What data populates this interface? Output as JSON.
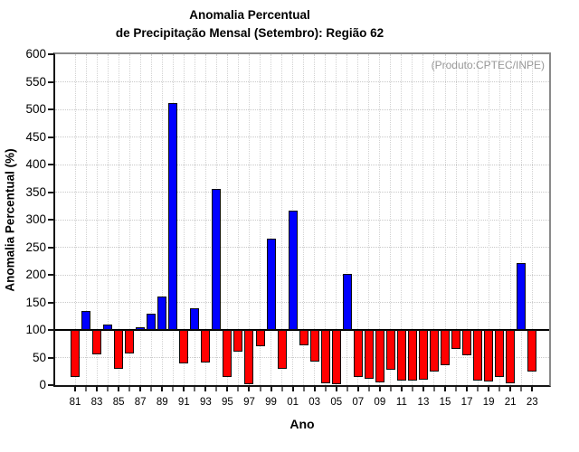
{
  "chart_data": {
    "type": "bar",
    "title_line1": "Anomalia Percentual",
    "title_line2": "de Precipitação Mensal (Setembro): Região 62",
    "title": "Anomalia Percentual de Precipitação Mensal (Setembro): Região 62",
    "annotation": "(Produto:CPTEC/INPE)",
    "xlabel": "Ano",
    "ylabel": "Anomalia Percentual (%)",
    "ylim": [
      0,
      600
    ],
    "ytick_interval": 50,
    "baseline": 100,
    "grid": "dotted gray: horizontal every 50, vertical every year",
    "legend": "none",
    "bar_color_above_baseline": "#0000ff",
    "bar_color_below_baseline": "#ff0000",
    "annotation_color": "#989898",
    "categories": [
      "81",
      "82",
      "83",
      "84",
      "85",
      "86",
      "87",
      "88",
      "89",
      "90",
      "91",
      "92",
      "93",
      "94",
      "95",
      "96",
      "97",
      "98",
      "99",
      "00",
      "01",
      "02",
      "03",
      "04",
      "05",
      "06",
      "07",
      "08",
      "09",
      "10",
      "11",
      "12",
      "13",
      "14",
      "15",
      "16",
      "17",
      "18",
      "19",
      "20",
      "21",
      "22",
      "23"
    ],
    "values": [
      15,
      135,
      55,
      110,
      30,
      58,
      105,
      130,
      160,
      512,
      39,
      140,
      41,
      356,
      15,
      60,
      2,
      70,
      266,
      30,
      316,
      72,
      42,
      4,
      2,
      201,
      15,
      12,
      5,
      28,
      9,
      8,
      10,
      24,
      36,
      65,
      54,
      9,
      6,
      14,
      4,
      221,
      24
    ],
    "x_tick_labels_shown": [
      "81",
      "83",
      "85",
      "87",
      "89",
      "91",
      "93",
      "95",
      "97",
      "99",
      "01",
      "03",
      "05",
      "07",
      "09",
      "11",
      "13",
      "15",
      "17",
      "19",
      "21",
      "23"
    ]
  }
}
